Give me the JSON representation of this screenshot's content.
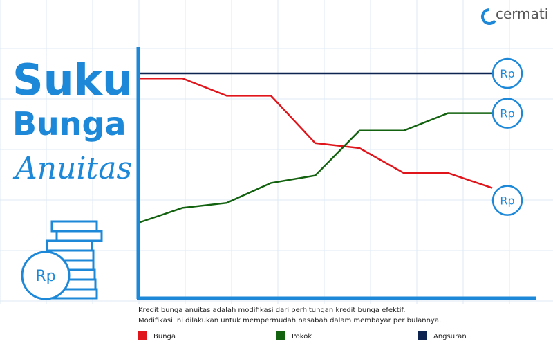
{
  "brand": "cermati",
  "title": {
    "line1": "Suku",
    "line2": "Bunga",
    "line3": "Anuitas"
  },
  "coin_label": "Rp",
  "caption": [
    "Kredit bunga anuitas adalah modifikasi dari perhitungan kredit bunga efektif.",
    "Modifikasi ini dilakukan untuk mempermudah nasabah dalam membayar per bulannya."
  ],
  "chart_data": {
    "type": "line",
    "x": [
      0,
      1,
      2,
      3,
      4,
      5,
      6,
      7,
      8
    ],
    "xlim": [
      0,
      8
    ],
    "ylim": [
      0,
      100
    ],
    "end_label": "Rp",
    "series": [
      {
        "name": "Bunga",
        "color": "#e0141b",
        "values": [
          88,
          88,
          81,
          81,
          62,
          60,
          50,
          50,
          44
        ]
      },
      {
        "name": "Pokok",
        "color": "#12620f",
        "values": [
          30,
          36,
          38,
          46,
          49,
          67,
          67,
          74,
          74
        ]
      },
      {
        "name": "Angsuran",
        "color": "#0d2350",
        "values": [
          90,
          90,
          90,
          90,
          90,
          90,
          90,
          90,
          90
        ]
      }
    ]
  }
}
